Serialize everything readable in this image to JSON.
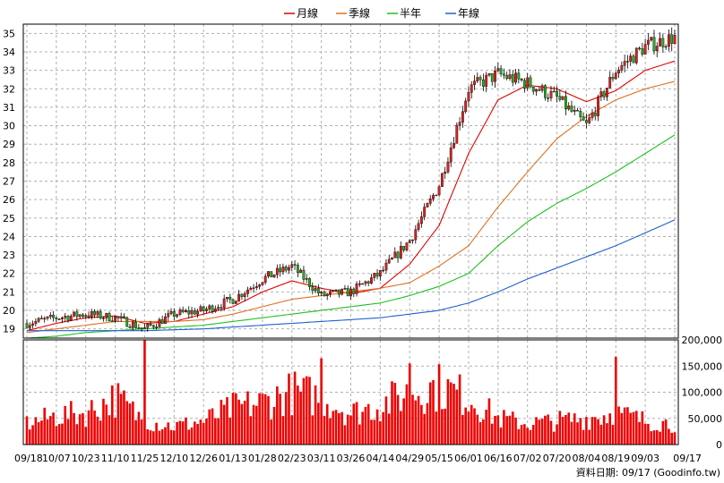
{
  "chart_data": [
    {
      "type": "candlestick",
      "legend_position": "top",
      "legend": [
        {
          "name": "月線",
          "color": "#e00000"
        },
        {
          "name": "季線",
          "color": "#e07020"
        },
        {
          "name": "半年",
          "color": "#20c020"
        },
        {
          "name": "年線",
          "color": "#2060d0"
        }
      ],
      "ylim": [
        18.5,
        35.5
      ],
      "yticks": [
        "19",
        "20",
        "21",
        "22",
        "23",
        "24",
        "25",
        "26",
        "27",
        "28",
        "29",
        "30",
        "31",
        "32",
        "33",
        "34",
        "35"
      ],
      "grid": true,
      "x_tick_labels": [
        "09/18",
        "10/07",
        "10/23",
        "11/10",
        "11/25",
        "12/10",
        "12/26",
        "01/13",
        "01/28",
        "02/23",
        "03/11",
        "03/26",
        "04/14",
        "04/29",
        "05/15",
        "06/01",
        "06/16",
        "07/02",
        "07/20",
        "08/04",
        "08/19",
        "09/03",
        "09/17"
      ],
      "price_keypoints": [
        {
          "date": "09/18",
          "close": 19.3
        },
        {
          "date": "10/07",
          "close": 19.6
        },
        {
          "date": "10/23",
          "close": 19.8
        },
        {
          "date": "11/10",
          "close": 19.6
        },
        {
          "date": "11/25",
          "close": 19.0
        },
        {
          "date": "12/10",
          "close": 19.8
        },
        {
          "date": "12/26",
          "close": 20.0
        },
        {
          "date": "01/13",
          "close": 20.6
        },
        {
          "date": "01/28",
          "close": 21.7
        },
        {
          "date": "02/23",
          "close": 22.4
        },
        {
          "date": "03/11",
          "close": 20.8
        },
        {
          "date": "03/26",
          "close": 21.0
        },
        {
          "date": "04/14",
          "close": 22.0
        },
        {
          "date": "04/29",
          "close": 23.8
        },
        {
          "date": "05/15",
          "close": 26.8
        },
        {
          "date": "06/01",
          "close": 32.0
        },
        {
          "date": "06/16",
          "close": 32.8
        },
        {
          "date": "07/02",
          "close": 32.3
        },
        {
          "date": "07/20",
          "close": 31.5
        },
        {
          "date": "08/04",
          "close": 30.0
        },
        {
          "date": "08/19",
          "close": 33.0
        },
        {
          "date": "09/03",
          "close": 34.3
        },
        {
          "date": "09/17",
          "close": 34.8
        }
      ],
      "moving_averages": {
        "月線": [
          18.9,
          19.3,
          19.6,
          19.7,
          19.3,
          19.4,
          19.8,
          20.2,
          21.0,
          21.6,
          21.2,
          20.9,
          21.2,
          22.5,
          24.6,
          28.5,
          31.4,
          32.2,
          32.0,
          31.3,
          31.9,
          33.0,
          33.5
        ],
        "季線": [
          18.8,
          19.0,
          19.2,
          19.4,
          19.4,
          19.4,
          19.5,
          19.8,
          20.2,
          20.6,
          20.8,
          21.0,
          21.2,
          21.5,
          22.4,
          23.5,
          25.6,
          27.5,
          29.3,
          30.5,
          31.4,
          32.0,
          32.4
        ],
        "半年": [
          18.5,
          18.6,
          18.8,
          18.9,
          19.0,
          19.1,
          19.2,
          19.4,
          19.6,
          19.8,
          20.0,
          20.2,
          20.4,
          20.8,
          21.3,
          22.0,
          23.5,
          24.8,
          25.8,
          26.6,
          27.5,
          28.5,
          29.5
        ],
        "年線": [
          18.9,
          18.9,
          18.9,
          18.9,
          18.9,
          18.95,
          19.0,
          19.1,
          19.2,
          19.3,
          19.4,
          19.5,
          19.6,
          19.8,
          20.0,
          20.4,
          21.0,
          21.7,
          22.3,
          22.9,
          23.5,
          24.2,
          24.9
        ]
      }
    },
    {
      "type": "bar",
      "title": "",
      "ylim": [
        0,
        200000
      ],
      "yticks": [
        "0",
        "50,000",
        "100,000",
        "150,000",
        "200,000"
      ],
      "grid": true,
      "color": "#ee0000",
      "volume_keypoints": [
        {
          "date": "09/18",
          "value": 40000
        },
        {
          "date": "10/07",
          "value": 55000
        },
        {
          "date": "10/23",
          "value": 60000
        },
        {
          "date": "11/10",
          "value": 90000
        },
        {
          "date": "11/25",
          "value": 45000
        },
        {
          "date": "12/10",
          "value": 35000
        },
        {
          "date": "12/26",
          "value": 45000
        },
        {
          "date": "01/13",
          "value": 70000
        },
        {
          "date": "01/28",
          "value": 80000
        },
        {
          "date": "02/23",
          "value": 100000
        },
        {
          "date": "03/11",
          "value": 90000
        },
        {
          "date": "03/26",
          "value": 60000
        },
        {
          "date": "04/14",
          "value": 75000
        },
        {
          "date": "04/29",
          "value": 100000
        },
        {
          "date": "05/15",
          "value": 110000
        },
        {
          "date": "06/01",
          "value": 90000
        },
        {
          "date": "06/16",
          "value": 50000
        },
        {
          "date": "07/02",
          "value": 40000
        },
        {
          "date": "07/20",
          "value": 45000
        },
        {
          "date": "08/04",
          "value": 50000
        },
        {
          "date": "08/19",
          "value": 60000
        },
        {
          "date": "09/03",
          "value": 45000
        },
        {
          "date": "09/17",
          "value": 40000
        }
      ],
      "volume_spikes": [
        {
          "date": "11/25",
          "value": 210000
        },
        {
          "date": "03/11",
          "value": 165000
        },
        {
          "date": "04/29",
          "value": 155000
        },
        {
          "date": "08/19",
          "value": 168000
        }
      ]
    }
  ],
  "footer": {
    "source": "資料日期: 09/17  (Goodinfo.tw)"
  }
}
